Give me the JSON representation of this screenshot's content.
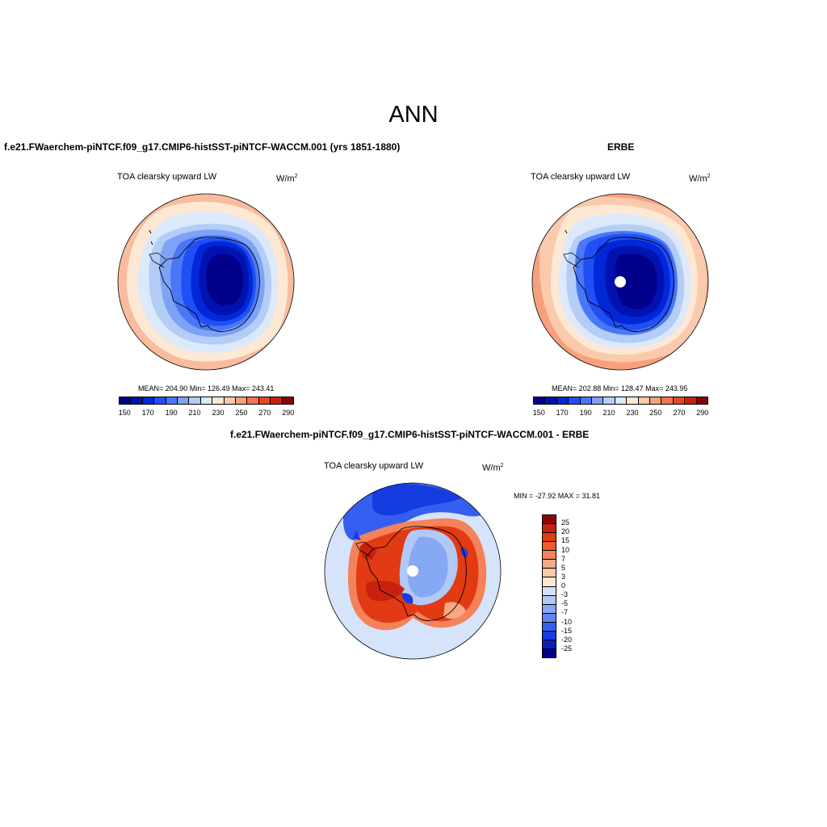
{
  "title": "ANN",
  "panels": {
    "model": {
      "header": "f.e21.FWaerchem-piNTCF.f09_g17.CMIP6-histSST-piNTCF-WACCM.001 (yrs 1851-1880)",
      "variable": "TOA clearsky upward LW",
      "units": "W/m",
      "units_exp": "2",
      "stats": "MEAN= 204.90  Min= 126.49  Max= 243.41",
      "mean": 204.9,
      "min": 126.49,
      "max": 243.41
    },
    "obs": {
      "header": "ERBE",
      "variable": "TOA clearsky upward LW",
      "units": "W/m",
      "units_exp": "2",
      "stats": "MEAN= 202.88  Min= 128.47  Max= 243.95",
      "mean": 202.88,
      "min": 128.47,
      "max": 243.95
    },
    "diff": {
      "header": "f.e21.FWaerchem-piNTCF.f09_g17.CMIP6-histSST-piNTCF-WACCM.001 - ERBE",
      "variable": "TOA clearsky upward LW",
      "units": "W/m",
      "units_exp": "2",
      "stats": "MIN = -27.92 MAX =  31.81",
      "min": -27.92,
      "max": 31.81
    }
  },
  "colorbar_abs": {
    "colors": [
      "#00008b",
      "#0012b0",
      "#0028d8",
      "#1f4ff5",
      "#4a77f7",
      "#7ea2f5",
      "#b3cdf7",
      "#dbe9fb",
      "#fde8d4",
      "#fbc9ac",
      "#f8a07c",
      "#f27550",
      "#e84626",
      "#c8220f",
      "#8e0404"
    ],
    "tick_labels": [
      "150",
      "170",
      "190",
      "210",
      "230",
      "250",
      "270",
      "290"
    ]
  },
  "colorbar_diff": {
    "colors": [
      "#8e0404",
      "#c8220f",
      "#e23a12",
      "#f05a26",
      "#f4825a",
      "#f8a882",
      "#fbc8a8",
      "#fde6d2",
      "#d5e4fb",
      "#b1c9f6",
      "#87a8f3",
      "#5f84f2",
      "#355ff0",
      "#163be0",
      "#0620c0",
      "#000087"
    ],
    "tick_labels": [
      "25",
      "20",
      "15",
      "10",
      "7",
      "5",
      "3",
      "0",
      "-3",
      "-5",
      "-7",
      "-10",
      "-15",
      "-20",
      "-25"
    ]
  }
}
